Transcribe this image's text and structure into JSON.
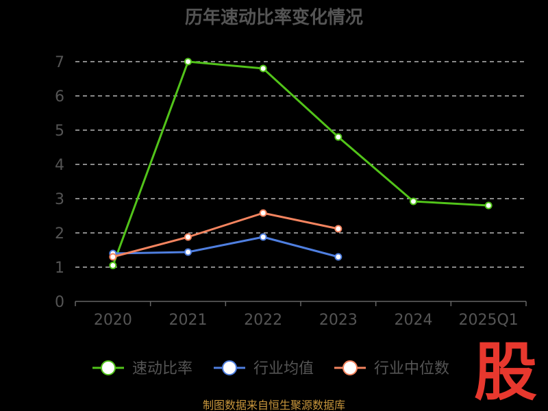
{
  "chart_data": {
    "type": "line",
    "title": "历年速动比率变化情况",
    "categories": [
      "2020",
      "2021",
      "2022",
      "2023",
      "2024",
      "2025Q1"
    ],
    "y_ticks": [
      "0",
      "1",
      "2",
      "3",
      "4",
      "5",
      "6",
      "7"
    ],
    "ylim": [
      0,
      7
    ],
    "grid": true,
    "legend_position": "bottom",
    "series": [
      {
        "name": "速动比率",
        "color": "#52c41a",
        "values": [
          1.05,
          7.0,
          6.8,
          4.8,
          2.92,
          2.8
        ]
      },
      {
        "name": "行业均值",
        "color": "#4f7fe0",
        "values": [
          1.4,
          1.44,
          1.88,
          1.3,
          null,
          null
        ]
      },
      {
        "name": "行业中位数",
        "color": "#f4845f",
        "values": [
          1.3,
          1.88,
          2.58,
          2.12,
          null,
          null
        ]
      }
    ]
  },
  "footer": "制图数据来自恒生聚源数据库",
  "logo_text": "股"
}
